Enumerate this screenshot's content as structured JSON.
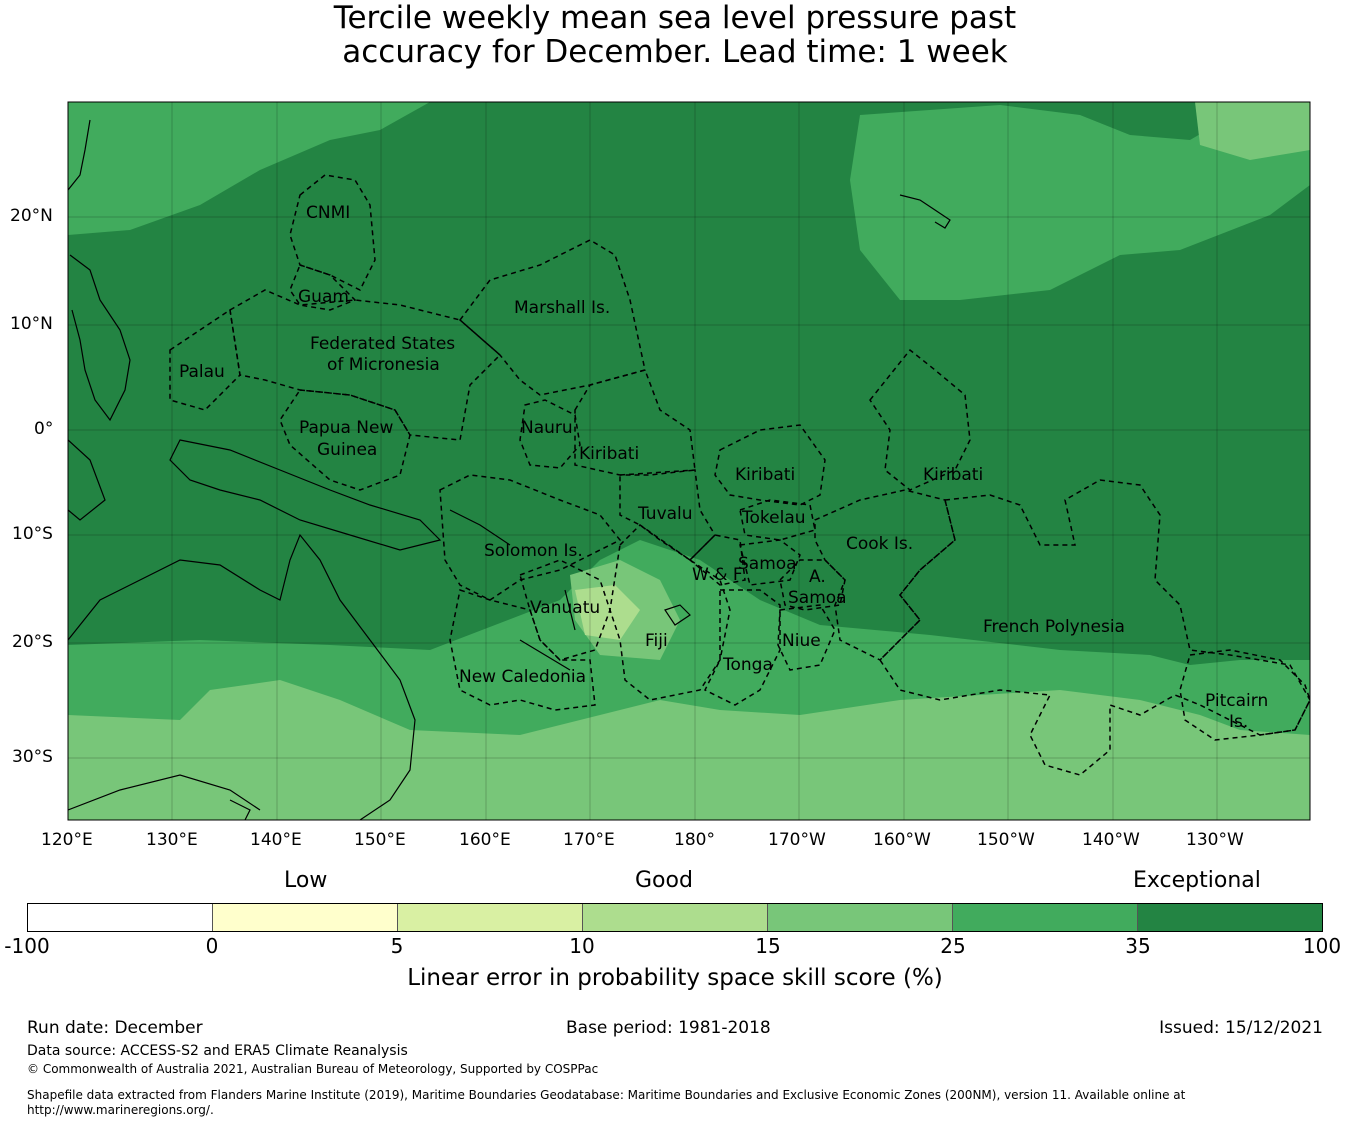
{
  "title": {
    "line1": "Tercile weekly mean sea level pressure past",
    "line2": "accuracy for December. Lead time: 1 week"
  },
  "map": {
    "lat_labels": [
      "20°N",
      "10°N",
      "0°",
      "10°S",
      "20°S",
      "30°S"
    ],
    "lon_labels": [
      "120°E",
      "130°E",
      "140°E",
      "150°E",
      "160°E",
      "170°E",
      "180°",
      "170°W",
      "160°W",
      "150°W",
      "140°W",
      "130°W"
    ],
    "region_labels": {
      "cnmi": "CNMI",
      "guam": "Guam",
      "marshall": "Marshall Is.",
      "fsm_1": "Federated States",
      "fsm_2": "of Micronesia",
      "palau": "Palau",
      "png_1": "Papua New",
      "png_2": "Guinea",
      "nauru": "Nauru",
      "kiribati_w": "Kiribati",
      "kiribati_c": "Kiribati",
      "kiribati_e": "Kiribati",
      "tuvalu": "Tuvalu",
      "tokelau": "Tokelau",
      "solomon": "Solomon Is.",
      "wf": "W & F",
      "samoa": "Samoa",
      "asamoa_1": "A.",
      "asamoa_2": "Samoa",
      "cook": "Cook Is.",
      "vanuatu": "Vanuatu",
      "fiji": "Fiji",
      "niue": "Niue",
      "tonga": "Tonga",
      "french_polynesia": "French Polynesia",
      "new_caledonia": "New Caledonia",
      "pitcairn_1": "Pitcairn",
      "pitcairn_2": "Is."
    }
  },
  "colorbar": {
    "words": {
      "low": "Low",
      "good": "Good",
      "exceptional": "Exceptional"
    },
    "ticks": [
      "-100",
      "0",
      "5",
      "10",
      "15",
      "25",
      "35",
      "100"
    ],
    "colors": [
      "#ffffff",
      "#ffffcc",
      "#d9f0a3",
      "#addd8e",
      "#78c679",
      "#41ab5d",
      "#238443"
    ],
    "title": "Linear error in probability space skill score (%)"
  },
  "footer": {
    "run_date": "Run date: December",
    "base_period": "Base period: 1981-2018",
    "issued": "Issued: 15/12/2021",
    "data_source": "Data source: ACCESS-S2 and ERA5 Climate Reanalysis",
    "copyright": "© Commonwealth of Australia 2021, Australian Bureau of Meteorology, Supported by COSPPac",
    "shapefile_1": "Shapefile data extracted from Flanders Marine Institute (2019), Maritime Boundaries Geodatabase: Maritime Boundaries and Exclusive Economic Zones (200NM), version 11. Available online at",
    "shapefile_2": "http://www.marineregions.org/."
  }
}
